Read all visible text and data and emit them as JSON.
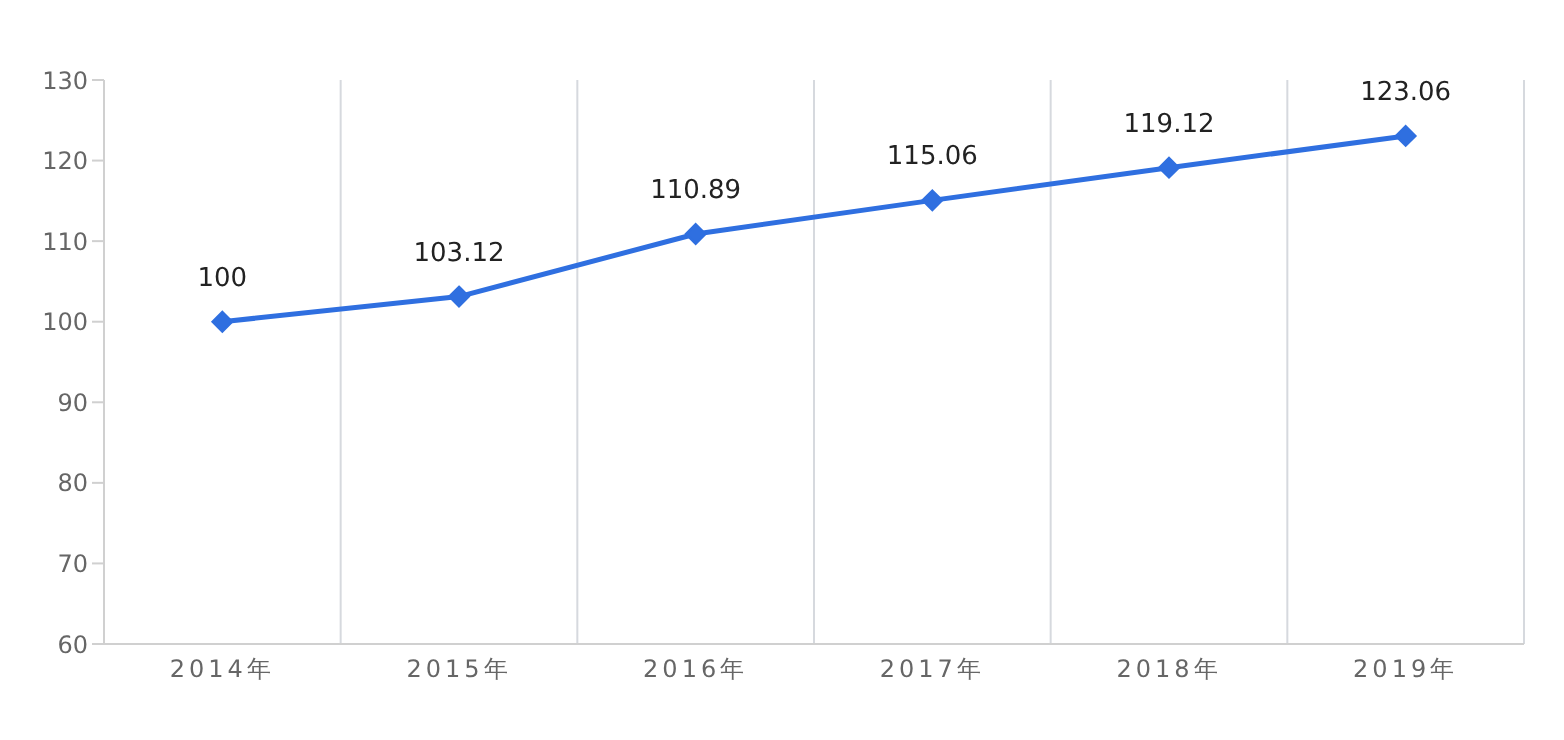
{
  "chart_data": {
    "type": "line",
    "categories": [
      "2014年",
      "2015年",
      "2016年",
      "2017年",
      "2018年",
      "2019年"
    ],
    "series": [
      {
        "color": "#2f6fe0",
        "values": [
          100,
          103.12,
          110.89,
          115.06,
          119.12,
          123.06
        ]
      }
    ],
    "ylim": [
      60,
      130
    ],
    "yticks": [
      60,
      70,
      80,
      90,
      100,
      110,
      120,
      130
    ],
    "grid": "x",
    "marker": "diamond",
    "data_labels": true,
    "legend": false
  }
}
